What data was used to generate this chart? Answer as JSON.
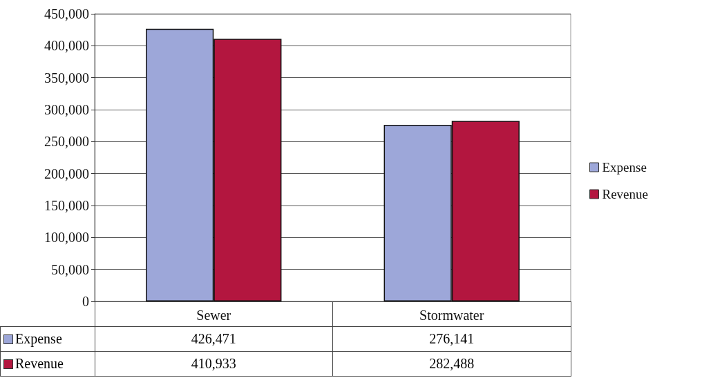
{
  "chart_data": {
    "type": "bar",
    "categories": [
      "Sewer",
      "Stormwater"
    ],
    "series": [
      {
        "name": "Expense",
        "color": "#9da7d9",
        "values": [
          426471,
          276141
        ],
        "value_labels": [
          "426,471",
          "276,141"
        ]
      },
      {
        "name": "Revenue",
        "color": "#b3163f",
        "values": [
          410933,
          282488
        ],
        "value_labels": [
          "410,933",
          "282,488"
        ]
      }
    ],
    "ylim": [
      0,
      450000
    ],
    "yticks": [
      {
        "value": 0,
        "label": "0"
      },
      {
        "value": 50000,
        "label": "50,000"
      },
      {
        "value": 100000,
        "label": "100,000"
      },
      {
        "value": 150000,
        "label": "150,000"
      },
      {
        "value": 200000,
        "label": "200,000"
      },
      {
        "value": 250000,
        "label": "250,000"
      },
      {
        "value": 300000,
        "label": "300,000"
      },
      {
        "value": 350000,
        "label": "350,000"
      },
      {
        "value": 400000,
        "label": "400,000"
      },
      {
        "value": 450000,
        "label": "450,000"
      }
    ],
    "grid": "y",
    "legend": "right"
  }
}
